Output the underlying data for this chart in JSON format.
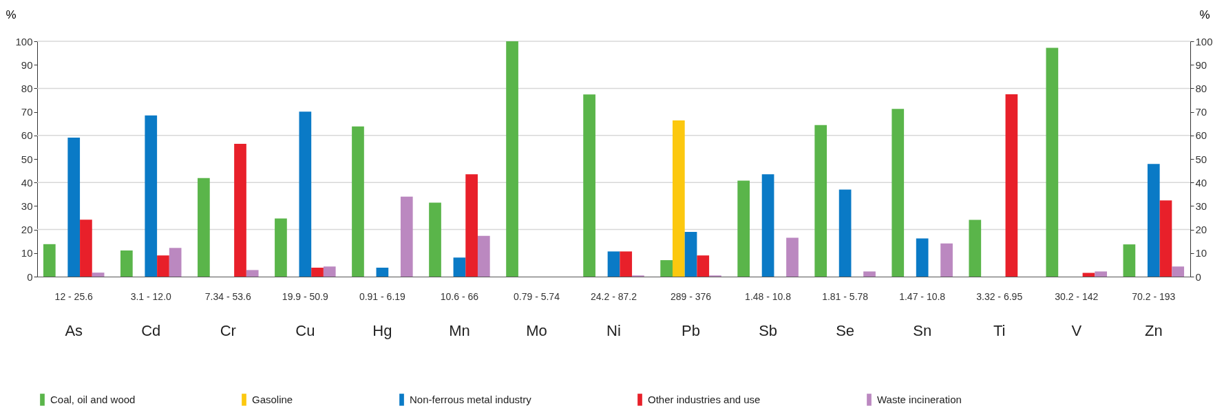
{
  "chart_data": {
    "type": "bar",
    "ylabel": "%",
    "y2label": "%",
    "categories": [
      "As",
      "Cd",
      "Cr",
      "Cu",
      "Hg",
      "Mn",
      "Mo",
      "Ni",
      "Pb",
      "Sb",
      "Se",
      "Sn",
      "Ti",
      "V",
      "Zn"
    ],
    "series": [
      {
        "name": "Coal, oil and wood",
        "color": "#5ab54a",
        "values": [
          13.8,
          11.1,
          41.9,
          24.7,
          63.8,
          31.4,
          100,
          77.4,
          7,
          40.8,
          64.4,
          71.3,
          24.1,
          97.2,
          13.7
        ]
      },
      {
        "name": "Gasoline",
        "color": "#fcc80f",
        "values": [
          0,
          0,
          0,
          0,
          0,
          0,
          0,
          0,
          66.4,
          0,
          0,
          0,
          0,
          0,
          0
        ]
      },
      {
        "name": "Non-ferrous metal industry",
        "color": "#0a7ac6",
        "values": [
          59.1,
          68.5,
          0,
          70.1,
          3.8,
          8.1,
          0,
          10.7,
          19,
          43.5,
          37,
          16.2,
          0,
          0,
          47.9
        ]
      },
      {
        "name": "Other industries and use",
        "color": "#e8202a",
        "values": [
          24.2,
          9,
          56.4,
          3.8,
          0,
          43.5,
          0,
          10.7,
          9,
          0,
          0,
          0,
          77.5,
          1.6,
          32.4
        ]
      },
      {
        "name": "Waste incineration",
        "color": "#bb88c0",
        "values": [
          1.7,
          12.2,
          2.8,
          4.3,
          34,
          17.3,
          0,
          0.5,
          0.5,
          16.5,
          2.2,
          14.1,
          0,
          2.2,
          4.3
        ]
      }
    ],
    "annotations": [
      "12 - 25.6",
      "3.1 - 12.0",
      "7.34 - 53.6",
      "19.9 - 50.9",
      "0.91 -  6.19",
      "10.6 - 66",
      "0.79 - 5.74",
      "24.2 - 87.2",
      "289 - 376",
      "1.48 - 10.8",
      "1.81 - 5.78",
      "1.47 - 10.8",
      "3.32 - 6.95",
      "30.2 - 142",
      "70.2 - 193"
    ],
    "ylim": [
      0,
      100
    ],
    "yticks": [
      0,
      10,
      20,
      30,
      40,
      50,
      60,
      70,
      80,
      90,
      100
    ],
    "y2lim": [
      0,
      100
    ],
    "y2ticks": [
      0,
      10,
      20,
      30,
      40,
      50,
      60,
      70,
      80,
      90,
      100
    ],
    "grid": "y",
    "legend": "bottom"
  }
}
